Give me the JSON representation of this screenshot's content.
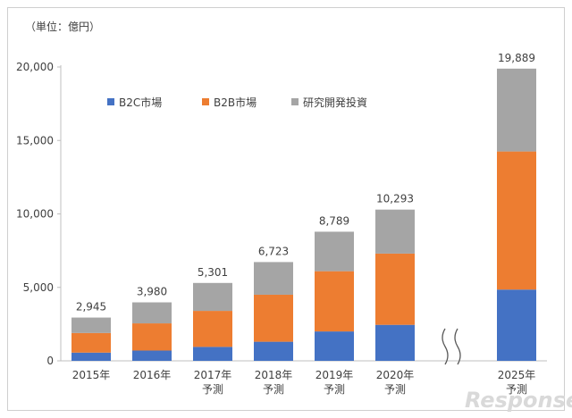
{
  "chart_data": {
    "type": "bar",
    "stacked": true,
    "unit_label": "（単位：億円）",
    "categories": [
      [
        "2015年"
      ],
      [
        "2016年"
      ],
      [
        "2017年",
        "予測"
      ],
      [
        "2018年",
        "予測"
      ],
      [
        "2019年",
        "予測"
      ],
      [
        "2020年",
        "予測"
      ],
      [
        "2025年",
        "予測"
      ]
    ],
    "series": [
      {
        "name": "B2C市場",
        "color": "#4472C4",
        "values": [
          560,
          700,
          950,
          1300,
          2000,
          2450,
          4850
        ]
      },
      {
        "name": "B2B市場",
        "color": "#ED7D31",
        "values": [
          1335,
          1850,
          2450,
          3200,
          4100,
          4850,
          9400
        ]
      },
      {
        "name": "研究開発投資",
        "color": "#A5A5A5",
        "values": [
          1050,
          1430,
          1901,
          2223,
          2689,
          2993,
          5639
        ]
      }
    ],
    "totals": [
      "2,945",
      "3,980",
      "5,301",
      "6,723",
      "8,789",
      "10,293",
      "19,889"
    ],
    "yticks": [
      "0",
      "5,000",
      "10,000",
      "15,000",
      "20,000"
    ],
    "ylim": [
      0,
      20000
    ],
    "axis_break": "between 2020年 and 2025年",
    "grid": false,
    "legend": "top-left"
  },
  "watermark": "Response."
}
